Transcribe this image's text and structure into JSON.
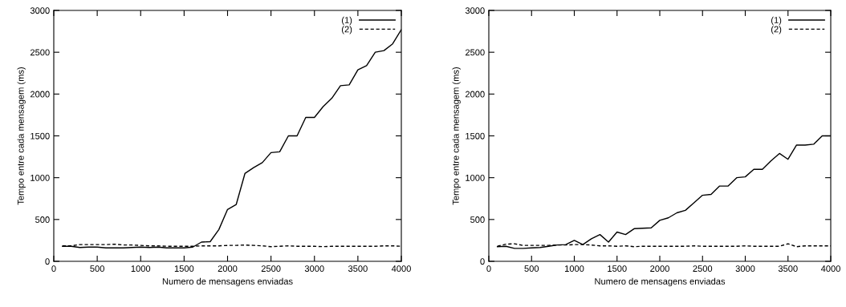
{
  "chart_data": [
    {
      "type": "line",
      "xlabel": "Numero de mensagens enviadas",
      "ylabel": "Tempo entre cada mensagem (ms)",
      "x": [
        100,
        200,
        300,
        400,
        500,
        600,
        700,
        800,
        900,
        1000,
        1100,
        1200,
        1300,
        1400,
        1500,
        1600,
        1700,
        1800,
        1900,
        2000,
        2100,
        2200,
        2300,
        2400,
        2500,
        2600,
        2700,
        2800,
        2900,
        3000,
        3100,
        3200,
        3300,
        3400,
        3500,
        3600,
        3700,
        3800,
        3900,
        4000
      ],
      "series": [
        {
          "name": "(1)",
          "color": "#000000",
          "line_style": "solid",
          "values": [
            180,
            180,
            165,
            170,
            170,
            160,
            160,
            160,
            165,
            170,
            165,
            170,
            160,
            160,
            160,
            170,
            230,
            235,
            380,
            620,
            680,
            1050,
            1120,
            1180,
            1300,
            1310,
            1500,
            1500,
            1720,
            1720,
            1850,
            1950,
            2100,
            2110,
            2290,
            2340,
            2500,
            2520,
            2600,
            2770
          ]
        },
        {
          "name": "(2)",
          "color": "#000000",
          "line_style": "dashed",
          "values": [
            185,
            185,
            200,
            200,
            200,
            200,
            205,
            195,
            195,
            190,
            185,
            185,
            180,
            180,
            180,
            180,
            185,
            185,
            185,
            190,
            190,
            195,
            190,
            185,
            175,
            180,
            185,
            180,
            180,
            180,
            175,
            180,
            180,
            180,
            180,
            180,
            180,
            185,
            185,
            180
          ]
        }
      ],
      "xlim": [
        0,
        4000
      ],
      "xticks": [
        0,
        500,
        1000,
        1500,
        2000,
        2500,
        3000,
        3500,
        4000
      ],
      "ylim": [
        0,
        3000
      ],
      "yticks": [
        0,
        500,
        1000,
        1500,
        2000,
        2500,
        3000
      ],
      "grid": false,
      "legend": "top right",
      "marker": "none"
    },
    {
      "type": "line",
      "xlabel": "Numero de mensagens enviadas",
      "ylabel": "Tempo entre cada mensagem (ms)",
      "x": [
        100,
        200,
        300,
        400,
        500,
        600,
        700,
        800,
        900,
        1000,
        1100,
        1200,
        1300,
        1400,
        1500,
        1600,
        1700,
        1800,
        1900,
        2000,
        2100,
        2200,
        2300,
        2400,
        2500,
        2600,
        2700,
        2800,
        2900,
        3000,
        3100,
        3200,
        3300,
        3400,
        3500,
        3600,
        3700,
        3800,
        3900,
        4000
      ],
      "series": [
        {
          "name": "(1)",
          "color": "#000000",
          "line_style": "solid",
          "values": [
            175,
            180,
            155,
            155,
            160,
            165,
            180,
            195,
            200,
            250,
            200,
            270,
            320,
            230,
            350,
            320,
            390,
            395,
            400,
            490,
            520,
            580,
            610,
            700,
            790,
            800,
            900,
            900,
            1000,
            1010,
            1100,
            1100,
            1200,
            1290,
            1220,
            1390,
            1390,
            1400,
            1500,
            1500
          ]
        },
        {
          "name": "(2)",
          "color": "#000000",
          "line_style": "dashed",
          "values": [
            180,
            205,
            210,
            190,
            190,
            190,
            190,
            195,
            195,
            200,
            200,
            195,
            185,
            185,
            180,
            185,
            175,
            180,
            180,
            180,
            180,
            180,
            180,
            185,
            180,
            180,
            180,
            180,
            180,
            185,
            180,
            180,
            180,
            180,
            210,
            175,
            185,
            185,
            185,
            185
          ]
        }
      ],
      "xlim": [
        0,
        4000
      ],
      "xticks": [
        0,
        500,
        1000,
        1500,
        2000,
        2500,
        3000,
        3500,
        4000
      ],
      "ylim": [
        0,
        3000
      ],
      "yticks": [
        0,
        500,
        1000,
        1500,
        2000,
        2500,
        3000
      ],
      "grid": false,
      "legend": "top right",
      "marker": "none"
    }
  ]
}
